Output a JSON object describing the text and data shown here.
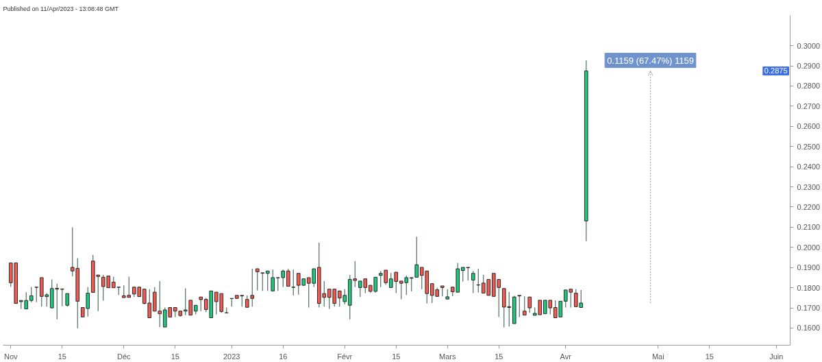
{
  "chart_data": {
    "type": "candlestick",
    "categories": [
      "Nov",
      null,
      null,
      null,
      null,
      null,
      null,
      null,
      null,
      null,
      "15",
      null,
      null,
      null,
      null,
      null,
      null,
      null,
      null,
      null,
      null,
      null,
      "Déc",
      null,
      null,
      null,
      null,
      null,
      null,
      null,
      null,
      null,
      "15",
      null,
      null,
      null,
      null,
      null,
      null,
      null,
      null,
      null,
      null,
      "2023",
      null,
      null,
      null,
      null,
      null,
      null,
      null,
      null,
      null,
      "16",
      null,
      null,
      null,
      null,
      null,
      null,
      null,
      null,
      null,
      null,
      null,
      "Févr",
      null,
      null,
      null,
      null,
      null,
      null,
      null,
      null,
      null,
      "15",
      null,
      null,
      null,
      null,
      null,
      null,
      null,
      null,
      null,
      "Mars",
      null,
      null,
      null,
      null,
      null,
      null,
      null,
      null,
      null,
      "15",
      null,
      null,
      null,
      null,
      null,
      null,
      null,
      null,
      null,
      null,
      null,
      null,
      "Avr",
      null,
      null,
      null,
      null,
      null,
      null,
      null,
      null,
      null,
      null,
      null,
      null,
      null,
      null,
      null,
      null,
      null,
      "Mai",
      null,
      null,
      null,
      null,
      null,
      null,
      null,
      null,
      null,
      "15",
      null,
      null,
      null,
      null,
      null,
      null,
      null,
      null,
      null,
      null,
      null,
      null,
      "Juin"
    ],
    "ohlc": [
      [
        0.1923,
        0.1923,
        0.1804,
        0.1825
      ],
      [
        0.1923,
        0.1923,
        0.1722,
        0.1722
      ],
      [
        0.1731,
        0.1737,
        0.1695,
        0.1737
      ],
      [
        0.1695,
        0.1778,
        0.1695,
        0.1737
      ],
      [
        0.1737,
        0.1804,
        0.1728,
        0.176
      ],
      [
        0.1802,
        0.1803,
        0.1728,
        0.1803
      ],
      [
        0.185,
        0.185,
        0.1706,
        0.1757
      ],
      [
        0.1756,
        0.1773,
        0.1706,
        0.1765
      ],
      [
        0.17,
        0.1841,
        0.1697,
        0.1796
      ],
      [
        0.1797,
        0.182,
        0.1643,
        0.1793
      ],
      [
        0.1794,
        0.1794,
        0.1708,
        0.1792
      ],
      [
        0.1713,
        0.1771,
        0.1706,
        0.1771
      ],
      [
        0.1901,
        0.21,
        0.1856,
        0.1883
      ],
      [
        0.1896,
        0.1947,
        0.1599,
        0.1733
      ],
      [
        0.1702,
        0.1702,
        0.1655,
        0.1655
      ],
      [
        0.1697,
        0.1803,
        0.1657,
        0.1773
      ],
      [
        0.1932,
        0.1963,
        0.1777,
        0.1777
      ],
      [
        0.1863,
        0.1863,
        0.1684,
        0.1856
      ],
      [
        0.1852,
        0.1863,
        0.1736,
        0.1806
      ],
      [
        0.1858,
        0.1858,
        0.18,
        0.18
      ],
      [
        0.1828,
        0.1855,
        0.18,
        0.18
      ],
      [
        0.1802,
        0.1803,
        0.1764,
        0.1803
      ],
      [
        0.176,
        0.1812,
        0.1751,
        0.1751
      ],
      [
        0.1762,
        0.1855,
        0.1752,
        0.1752
      ],
      [
        0.1803,
        0.1803,
        0.1755,
        0.1769
      ],
      [
        0.1803,
        0.1803,
        0.1756,
        0.1756
      ],
      [
        0.1793,
        0.1793,
        0.1717,
        0.1722
      ],
      [
        0.1724,
        0.1793,
        0.1651,
        0.1651
      ],
      [
        0.1778,
        0.1803,
        0.1684,
        0.1684
      ],
      [
        0.1684,
        0.1833,
        0.1605,
        0.1671
      ],
      [
        0.1605,
        0.1702,
        0.1605,
        0.169
      ],
      [
        0.1702,
        0.1702,
        0.1654,
        0.1654
      ],
      [
        0.1702,
        0.1702,
        0.1654,
        0.1684
      ],
      [
        0.1684,
        0.1684,
        0.1657,
        0.1662
      ],
      [
        0.1684,
        0.1797,
        0.1664,
        0.169
      ],
      [
        0.1738,
        0.1738,
        0.1664,
        0.1664
      ],
      [
        0.1684,
        0.1713,
        0.1668,
        0.1713
      ],
      [
        0.1754,
        0.1754,
        0.1684,
        0.1741
      ],
      [
        0.1742,
        0.1749,
        0.1679,
        0.1692
      ],
      [
        0.1651,
        0.1784,
        0.1651,
        0.1784
      ],
      [
        0.1778,
        0.1778,
        0.1668,
        0.1731
      ],
      [
        0.1771,
        0.1771,
        0.1676,
        0.1682
      ],
      [
        0.1675,
        0.1702,
        0.1675,
        0.1676
      ],
      [
        0.1746,
        0.1747,
        0.1706,
        0.1747
      ],
      [
        0.1762,
        0.1762,
        0.1747,
        0.1747
      ],
      [
        0.1762,
        0.1762,
        0.1706,
        0.1759
      ],
      [
        0.1742,
        0.1762,
        0.1703,
        0.1703
      ],
      [
        0.1762,
        0.1894,
        0.1706,
        0.1747
      ],
      [
        0.1894,
        0.1894,
        0.1787,
        0.1879
      ],
      [
        0.1874,
        0.1874,
        0.1784,
        0.1872
      ],
      [
        0.1871,
        0.1883,
        0.1784,
        0.1883
      ],
      [
        0.1784,
        0.189,
        0.1784,
        0.185
      ],
      [
        0.1849,
        0.185,
        0.1784,
        0.185
      ],
      [
        0.185,
        0.189,
        0.1803,
        0.1883
      ],
      [
        0.1883,
        0.1894,
        0.1807,
        0.1807
      ],
      [
        0.1802,
        0.189,
        0.1762,
        0.1803
      ],
      [
        0.1871,
        0.1871,
        0.1766,
        0.1812
      ],
      [
        0.1812,
        0.1844,
        0.1812,
        0.1844
      ],
      [
        0.185,
        0.185,
        0.1702,
        0.1822
      ],
      [
        0.1822,
        0.1894,
        0.1803,
        0.1894
      ],
      [
        0.1901,
        0.2023,
        0.1702,
        0.1722
      ],
      [
        0.1771,
        0.1833,
        0.1706,
        0.1752
      ],
      [
        0.1793,
        0.1793,
        0.1695,
        0.1752
      ],
      [
        0.1793,
        0.1793,
        0.1706,
        0.1722
      ],
      [
        0.1784,
        0.1784,
        0.1706,
        0.1749
      ],
      [
        0.1731,
        0.1793,
        0.1717,
        0.1762
      ],
      [
        0.1713,
        0.1863,
        0.1643,
        0.1841
      ],
      [
        0.1844,
        0.1932,
        0.1803,
        0.1836
      ],
      [
        0.1801,
        0.1833,
        0.1755,
        0.1833
      ],
      [
        0.1844,
        0.1844,
        0.1773,
        0.1801
      ],
      [
        0.1812,
        0.1812,
        0.1776,
        0.1782
      ],
      [
        0.1782,
        0.1852,
        0.1776,
        0.1852
      ],
      [
        0.1861,
        0.1883,
        0.1803,
        0.1871
      ],
      [
        0.1887,
        0.1887,
        0.1814,
        0.1825
      ],
      [
        0.1801,
        0.1874,
        0.1801,
        0.1844
      ],
      [
        0.1877,
        0.1877,
        0.1773,
        0.1831
      ],
      [
        0.1833,
        0.1833,
        0.1743,
        0.1822
      ],
      [
        0.1825,
        0.186,
        0.1764,
        0.185
      ],
      [
        0.185,
        0.185,
        0.1782,
        0.1847
      ],
      [
        0.1852,
        0.2053,
        0.1852,
        0.1914
      ],
      [
        0.1901,
        0.1901,
        0.1793,
        0.1861
      ],
      [
        0.1883,
        0.1883,
        0.1722,
        0.1771
      ],
      [
        0.182,
        0.182,
        0.1724,
        0.1762
      ],
      [
        0.179,
        0.18,
        0.1757,
        0.1757
      ],
      [
        0.1809,
        0.1809,
        0.1757,
        0.1801
      ],
      [
        0.1744,
        0.1793,
        0.1744,
        0.1755
      ],
      [
        0.1803,
        0.1803,
        0.1758,
        0.178
      ],
      [
        0.1778,
        0.1923,
        0.1778,
        0.1894
      ],
      [
        0.1885,
        0.1901,
        0.1831,
        0.1901
      ],
      [
        0.1901,
        0.1901,
        0.1836,
        0.1899
      ],
      [
        0.1838,
        0.1883,
        0.1773,
        0.1871
      ],
      [
        0.1813,
        0.1894,
        0.1776,
        0.1814
      ],
      [
        0.1823,
        0.1863,
        0.1773,
        0.1773
      ],
      [
        0.1841,
        0.1841,
        0.1762,
        0.1762
      ],
      [
        0.1871,
        0.1871,
        0.1757,
        0.1757
      ],
      [
        0.1841,
        0.1841,
        0.1654,
        0.1801
      ],
      [
        0.1796,
        0.1796,
        0.1603,
        0.1704
      ],
      [
        0.1706,
        0.1779,
        0.1608,
        0.1702
      ],
      [
        0.1622,
        0.176,
        0.1622,
        0.1754
      ],
      [
        0.1762,
        0.1762,
        0.1654,
        0.1759
      ],
      [
        0.1684,
        0.1757,
        0.1664,
        0.1664
      ],
      [
        0.1754,
        0.1754,
        0.1676,
        0.17
      ],
      [
        0.1663,
        0.1702,
        0.1663,
        0.1673
      ],
      [
        0.1738,
        0.1738,
        0.1666,
        0.1666
      ],
      [
        0.1671,
        0.1738,
        0.1671,
        0.1738
      ],
      [
        0.1738,
        0.1738,
        0.1668,
        0.17
      ],
      [
        0.1702,
        0.1738,
        0.1651,
        0.1651
      ],
      [
        0.1655,
        0.1733,
        0.1655,
        0.1733
      ],
      [
        0.1733,
        0.1789,
        0.1702,
        0.1789
      ],
      [
        0.1793,
        0.1793,
        0.1702,
        0.1778
      ],
      [
        0.1773,
        0.1793,
        0.1706,
        0.1706
      ],
      [
        0.1702,
        0.1789,
        0.1702,
        0.1724
      ],
      [
        0.2131,
        0.2927,
        0.2031,
        0.2875
      ],
      null,
      null,
      null,
      null,
      null,
      null,
      null,
      null,
      null,
      null,
      null,
      null,
      null,
      null,
      null,
      null,
      null,
      null,
      null,
      null,
      null,
      null,
      null,
      null,
      null,
      null,
      null,
      null,
      null,
      null,
      null,
      null,
      null,
      null,
      null,
      null,
      null
    ],
    "colors": [
      "#f05a50",
      "#f05a50",
      "#1fc77e",
      "#1fc77e",
      "#1fc77e",
      "#1fc77e",
      "#f05a50",
      "#1fc77e",
      "#1fc77e",
      "#f05a50",
      "#f05a50",
      "#1fc77e",
      "#f05a50",
      "#f05a50",
      "#f05a50",
      "#1fc77e",
      "#f05a50",
      "#f05a50",
      "#f05a50",
      "#f05a50",
      "#f05a50",
      "#1fc77e",
      "#f05a50",
      "#f05a50",
      "#f05a50",
      "#f05a50",
      "#f05a50",
      "#f05a50",
      "#f05a50",
      "#f05a50",
      "#1fc77e",
      "#f05a50",
      "#f05a50",
      "#f05a50",
      "#1fc77e",
      "#f05a50",
      "#1fc77e",
      "#f05a50",
      "#f05a50",
      "#1fc77e",
      "#f05a50",
      "#f05a50",
      "#1fc77e",
      "#1fc77e",
      "#f05a50",
      "#f05a50",
      "#f05a50",
      "#f05a50",
      "#f05a50",
      "#f05a50",
      "#1fc77e",
      "#1fc77e",
      "#1fc77e",
      "#1fc77e",
      "#f05a50",
      "#1fc77e",
      "#f05a50",
      "#1fc77e",
      "#f05a50",
      "#1fc77e",
      "#f05a50",
      "#f05a50",
      "#f05a50",
      "#f05a50",
      "#f05a50",
      "#1fc77e",
      "#1fc77e",
      "#f05a50",
      "#1fc77e",
      "#f05a50",
      "#f05a50",
      "#1fc77e",
      "#1fc77e",
      "#f05a50",
      "#1fc77e",
      "#f05a50",
      "#f05a50",
      "#1fc77e",
      "#f05a50",
      "#1fc77e",
      "#f05a50",
      "#f05a50",
      "#f05a50",
      "#f05a50",
      "#f05a50",
      "#1fc77e",
      "#f05a50",
      "#1fc77e",
      "#1fc77e",
      "#f05a50",
      "#1fc77e",
      "#1fc77e",
      "#f05a50",
      "#f05a50",
      "#f05a50",
      "#f05a50",
      "#f05a50",
      "#f05a50",
      "#1fc77e",
      "#f05a50",
      "#f05a50",
      "#f05a50",
      "#1fc77e",
      "#f05a50",
      "#1fc77e",
      "#f05a50",
      "#f05a50",
      "#1fc77e",
      "#1fc77e",
      "#f05a50",
      "#f05a50",
      "#1fc77e",
      "#1fc77e",
      null,
      null,
      null,
      null,
      null,
      null,
      null,
      null,
      null,
      null,
      null,
      null,
      null,
      null,
      null,
      null,
      null,
      null,
      null,
      null,
      null,
      null,
      null,
      null,
      null,
      null,
      null,
      null,
      null,
      null,
      null,
      null,
      null,
      null,
      null,
      null,
      null
    ],
    "ylim": [
      0.1515,
      0.315
    ],
    "yticks": [
      {
        "value": 0.16,
        "label": "0.1600"
      },
      {
        "value": 0.17,
        "label": "0.1700"
      },
      {
        "value": 0.18,
        "label": "0.1800"
      },
      {
        "value": 0.19,
        "label": "0.1900"
      },
      {
        "value": 0.2,
        "label": "0.2000"
      },
      {
        "value": 0.21,
        "label": "0.2100"
      },
      {
        "value": 0.22,
        "label": "0.2200"
      },
      {
        "value": 0.23,
        "label": "0.2300"
      },
      {
        "value": 0.24,
        "label": "0.2400"
      },
      {
        "value": 0.25,
        "label": "0.2500"
      },
      {
        "value": 0.26,
        "label": "0.2600"
      },
      {
        "value": 0.27,
        "label": "0.2700"
      },
      {
        "value": 0.28,
        "label": "0.2800"
      },
      {
        "value": 0.29,
        "label": "0.2900"
      },
      {
        "value": 0.3,
        "label": "0.3000"
      }
    ],
    "annotations": [
      "Published on 11/Apr/2023 - 13:08:48 GMT",
      "0.1159 (67.47%) 1159",
      "0.2875"
    ]
  }
}
